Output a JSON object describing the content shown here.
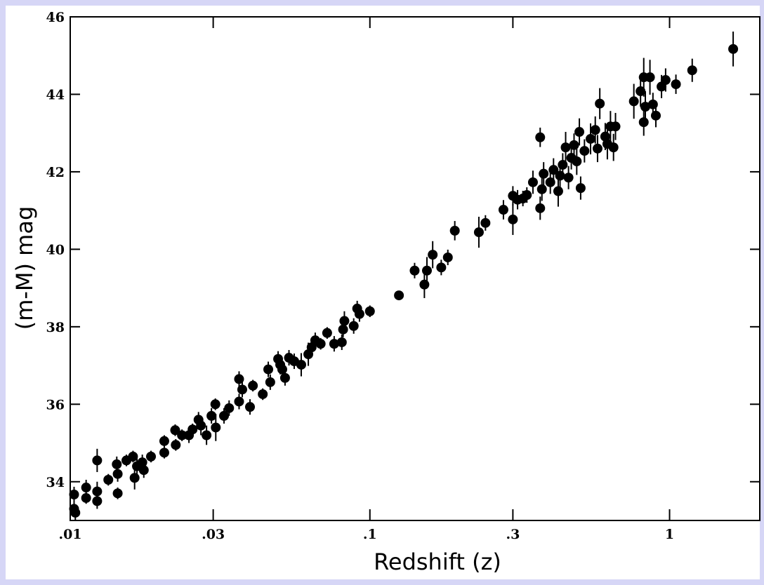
{
  "chart_data": {
    "type": "scatter",
    "xlabel": "Redshift (z)",
    "ylabel": "(m-M) mag",
    "xscale": "log",
    "xlim": [
      0.01,
      2
    ],
    "ylim": [
      33,
      46
    ],
    "xticks": [
      {
        "value": 0.01,
        "label": ".01"
      },
      {
        "value": 0.03,
        "label": ".03"
      },
      {
        "value": 0.1,
        "label": ".1"
      },
      {
        "value": 0.3,
        "label": ".3"
      },
      1
    ],
    "yticks": [
      34,
      36,
      38,
      40,
      42,
      44,
      46
    ],
    "color": "#000000",
    "x": [
      0.0103,
      0.0103,
      0.0104,
      0.0113,
      0.0113,
      0.0123,
      0.0123,
      0.0123,
      0.0134,
      0.0143,
      0.0144,
      0.0144,
      0.0154,
      0.0162,
      0.0164,
      0.0167,
      0.0174,
      0.0176,
      0.0186,
      0.0206,
      0.0206,
      0.0224,
      0.0225,
      0.0236,
      0.0249,
      0.0256,
      0.0268,
      0.0273,
      0.0285,
      0.0296,
      0.0305,
      0.0306,
      0.0326,
      0.0339,
      0.0366,
      0.0366,
      0.0375,
      0.0398,
      0.0407,
      0.0439,
      0.0458,
      0.0465,
      0.0494,
      0.0502,
      0.051,
      0.0521,
      0.0537,
      0.0559,
      0.059,
      0.0623,
      0.0639,
      0.0657,
      0.0685,
      0.072,
      0.076,
      0.0806,
      0.0814,
      0.0822,
      0.0883,
      0.0907,
      0.0923,
      0.1,
      0.125,
      0.141,
      0.152,
      0.155,
      0.162,
      0.173,
      0.182,
      0.192,
      0.231,
      0.243,
      0.279,
      0.3,
      0.3,
      0.311,
      0.324,
      0.334,
      0.35,
      0.37,
      0.37,
      0.375,
      0.38,
      0.4,
      0.41,
      0.425,
      0.431,
      0.44,
      0.45,
      0.46,
      0.47,
      0.48,
      0.49,
      0.5,
      0.505,
      0.52,
      0.545,
      0.565,
      0.575,
      0.585,
      0.61,
      0.62,
      0.635,
      0.65,
      0.66,
      0.76,
      0.8,
      0.82,
      0.82,
      0.83,
      0.86,
      0.88,
      0.9,
      0.94,
      0.97,
      1.05,
      1.19,
      1.63
    ],
    "values": [
      33.67,
      33.3,
      33.2,
      33.85,
      33.58,
      34.55,
      33.75,
      33.5,
      34.05,
      34.45,
      34.2,
      33.7,
      34.55,
      34.65,
      34.1,
      34.4,
      34.5,
      34.3,
      34.65,
      35.05,
      34.75,
      35.33,
      34.95,
      35.2,
      35.2,
      35.35,
      35.6,
      35.45,
      35.2,
      35.7,
      36.0,
      35.4,
      35.7,
      35.9,
      36.65,
      36.07,
      36.38,
      35.93,
      36.48,
      36.26,
      36.9,
      36.57,
      37.17,
      37.02,
      36.9,
      36.68,
      37.2,
      37.11,
      37.02,
      37.29,
      37.47,
      37.65,
      37.56,
      37.84,
      37.56,
      37.6,
      37.93,
      38.15,
      38.02,
      38.47,
      38.33,
      38.4,
      38.81,
      39.45,
      39.09,
      39.45,
      39.86,
      39.53,
      39.79,
      40.48,
      40.44,
      40.68,
      41.02,
      40.77,
      41.38,
      41.28,
      41.31,
      41.4,
      41.73,
      41.06,
      42.89,
      41.55,
      41.95,
      41.73,
      42.05,
      41.5,
      41.9,
      42.18,
      42.63,
      41.85,
      42.36,
      42.69,
      42.27,
      43.03,
      41.58,
      42.54,
      42.85,
      43.08,
      42.6,
      43.76,
      42.91,
      42.72,
      43.17,
      42.63,
      43.17,
      43.82,
      44.08,
      44.44,
      43.28,
      43.68,
      44.44,
      43.74,
      43.45,
      44.2,
      44.37,
      44.26,
      44.62,
      45.17
    ],
    "errors": [
      0.2,
      0.2,
      0.2,
      0.2,
      0.15,
      0.3,
      0.25,
      0.2,
      0.15,
      0.2,
      0.2,
      0.15,
      0.15,
      0.15,
      0.3,
      0.2,
      0.2,
      0.2,
      0.15,
      0.15,
      0.15,
      0.15,
      0.15,
      0.15,
      0.2,
      0.15,
      0.2,
      0.25,
      0.25,
      0.2,
      0.15,
      0.35,
      0.2,
      0.2,
      0.2,
      0.2,
      0.2,
      0.2,
      0.15,
      0.15,
      0.2,
      0.2,
      0.2,
      0.25,
      0.2,
      0.2,
      0.2,
      0.2,
      0.3,
      0.3,
      0.2,
      0.2,
      0.15,
      0.15,
      0.2,
      0.2,
      0.2,
      0.25,
      0.2,
      0.2,
      0.2,
      0.15,
      0.1,
      0.2,
      0.35,
      0.35,
      0.35,
      0.2,
      0.2,
      0.25,
      0.4,
      0.2,
      0.25,
      0.4,
      0.25,
      0.25,
      0.2,
      0.2,
      0.3,
      0.3,
      0.25,
      0.3,
      0.3,
      0.3,
      0.3,
      0.4,
      0.3,
      0.3,
      0.4,
      0.3,
      0.3,
      0.3,
      0.35,
      0.35,
      0.3,
      0.3,
      0.4,
      0.35,
      0.35,
      0.4,
      0.35,
      0.4,
      0.4,
      0.35,
      0.35,
      0.45,
      0.4,
      0.5,
      0.35,
      0.4,
      0.45,
      0.3,
      0.3,
      0.3,
      0.3,
      0.25,
      0.3,
      0.45
    ]
  }
}
